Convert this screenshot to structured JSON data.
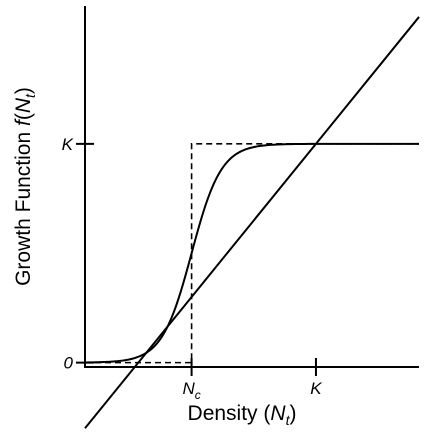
{
  "chart_data": {
    "type": "line",
    "title": "",
    "xlabel": {
      "text": "Density (",
      "var": "N",
      "sub": "t",
      "close": ")"
    },
    "ylabel": {
      "text": "Growth Function ",
      "func": "f",
      "open": "(",
      "var": "N",
      "sub": "t",
      "close": ")"
    },
    "x_ticks": [
      {
        "value": 0.3,
        "label": "N",
        "sub": "c"
      },
      {
        "value": 1.0,
        "label": "K",
        "sub": ""
      }
    ],
    "y_ticks": [
      {
        "value": 0,
        "label": "0"
      },
      {
        "value": 1.0,
        "label": "K"
      }
    ],
    "xlim": [
      -0.3,
      1.58
    ],
    "ylim": [
      -0.02,
      1.63
    ],
    "grid": false,
    "legend": "none",
    "series": [
      {
        "style": "solid",
        "x": [
          -0.3,
          1.58
        ],
        "y": [
          -0.3,
          1.58
        ]
      },
      {
        "style": "dashed",
        "x": [
          -0.3,
          0.3,
          0.3,
          1.58
        ],
        "y": [
          0,
          0,
          1.0,
          1.0
        ]
      },
      {
        "style": "solid",
        "shape": "sigmoid",
        "params": {
          "K": 1.0,
          "Nc": 0.3,
          "steepness": 12,
          "x_start": -0.3,
          "x_end": 1.58
        }
      }
    ]
  }
}
